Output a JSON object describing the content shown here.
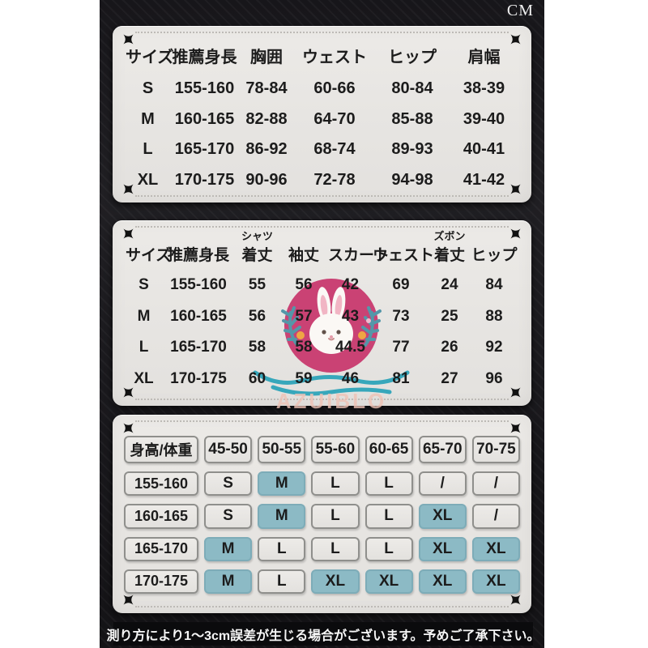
{
  "unit_label": "CM",
  "notice": "測り方により1～3cm誤差が生じる場合がございます。予めご了承下さい。",
  "watermark": {
    "brand": "AZUIBLO"
  },
  "colors": {
    "highlight_teal": "#8cbac5",
    "brand_pink": "#c93a6f",
    "paper": "#e8e6e3",
    "background": "#1a191c"
  },
  "table1": {
    "headers": [
      "サイズ",
      "推薦身長",
      "胸囲",
      "ウェスト",
      "ヒップ",
      "肩幅"
    ],
    "rows": [
      [
        "S",
        "155-160",
        "78-84",
        "60-66",
        "80-84",
        "38-39"
      ],
      [
        "M",
        "160-165",
        "82-88",
        "64-70",
        "85-88",
        "39-40"
      ],
      [
        "L",
        "165-170",
        "86-92",
        "68-74",
        "89-93",
        "40-41"
      ],
      [
        "XL",
        "170-175",
        "90-96",
        "72-78",
        "94-98",
        "41-42"
      ]
    ]
  },
  "table2": {
    "headers": [
      {
        "label": "サイズ"
      },
      {
        "label": "推薦身長"
      },
      {
        "top": "シャツ",
        "label": "着丈"
      },
      {
        "label": "袖丈"
      },
      {
        "label": "スカート"
      },
      {
        "label": "ウェスト"
      },
      {
        "top": "ズボン",
        "label": "着丈"
      },
      {
        "label": "ヒップ"
      }
    ],
    "rows": [
      [
        "S",
        "155-160",
        "55",
        "56",
        "42",
        "69",
        "24",
        "84"
      ],
      [
        "M",
        "160-165",
        "56",
        "57",
        "43",
        "73",
        "25",
        "88"
      ],
      [
        "L",
        "165-170",
        "58",
        "58",
        "44.5",
        "77",
        "26",
        "92"
      ],
      [
        "XL",
        "170-175",
        "60",
        "59",
        "46",
        "81",
        "27",
        "96"
      ]
    ]
  },
  "table3": {
    "headers": [
      "身高/体重",
      "45-50",
      "50-55",
      "55-60",
      "60-65",
      "65-70",
      "70-75"
    ],
    "rows": [
      {
        "cells": [
          "155-160",
          "S",
          "M",
          "L",
          "L",
          "/",
          "/"
        ],
        "teal": [
          false,
          false,
          true,
          false,
          false,
          false,
          false
        ]
      },
      {
        "cells": [
          "160-165",
          "S",
          "M",
          "L",
          "L",
          "XL",
          "/"
        ],
        "teal": [
          false,
          false,
          true,
          false,
          false,
          true,
          false
        ]
      },
      {
        "cells": [
          "165-170",
          "M",
          "L",
          "L",
          "L",
          "XL",
          "XL"
        ],
        "teal": [
          false,
          true,
          false,
          false,
          false,
          true,
          true
        ]
      },
      {
        "cells": [
          "170-175",
          "M",
          "L",
          "XL",
          "XL",
          "XL",
          "XL"
        ],
        "teal": [
          false,
          true,
          false,
          true,
          true,
          true,
          true
        ]
      }
    ]
  }
}
